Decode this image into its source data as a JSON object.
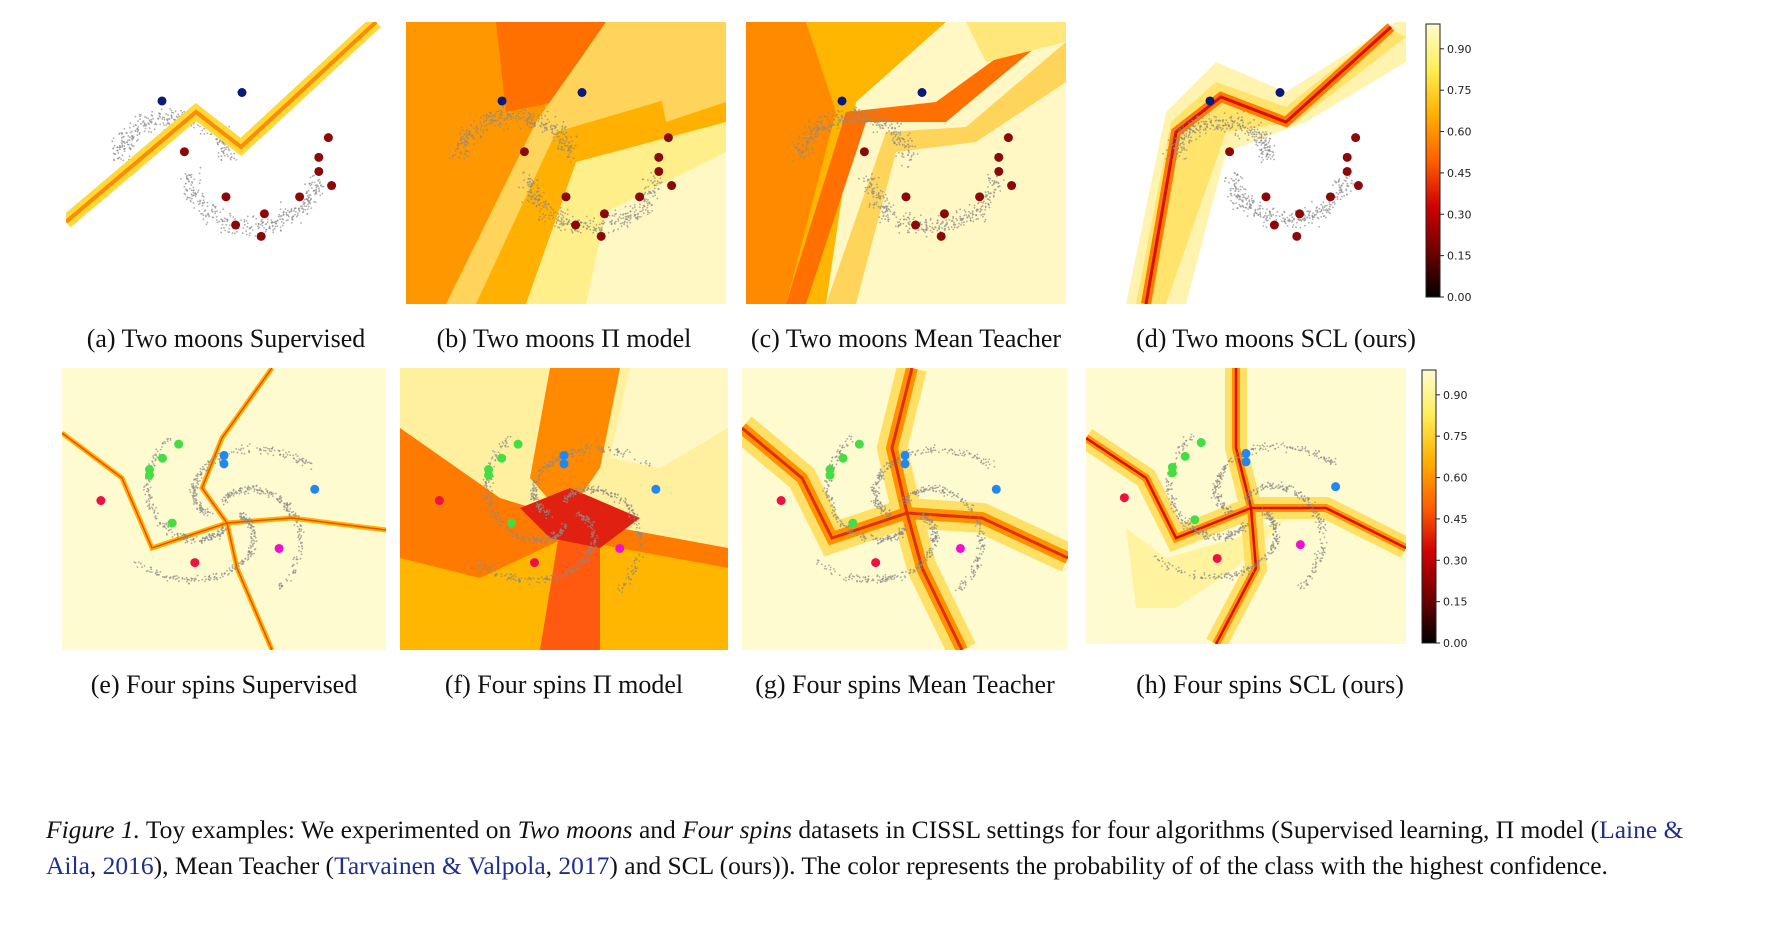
{
  "figure": {
    "panels": [
      {
        "id": "a",
        "caption": "(a) Two moons Supervised"
      },
      {
        "id": "b",
        "caption": "(b) Two moons Π model"
      },
      {
        "id": "c",
        "caption": "(c) Two moons Mean Teacher"
      },
      {
        "id": "d",
        "caption": "(d) Two moons SCL (ours)"
      },
      {
        "id": "e",
        "caption": "(e) Four spins Supervised"
      },
      {
        "id": "f",
        "caption": "(f) Four spins Π model"
      },
      {
        "id": "g",
        "caption": "(g) Four spins Mean Teacher"
      },
      {
        "id": "h",
        "caption": "(h) Four spins SCL (ours)"
      }
    ],
    "colorbar": {
      "ticks": [
        "0.90",
        "0.75",
        "0.60",
        "0.45",
        "0.30",
        "0.15",
        "0.00"
      ],
      "colors": [
        "#fffbd0",
        "#ffee55",
        "#ffb000",
        "#ff6000",
        "#d00000",
        "#700000",
        "#000000"
      ]
    },
    "caption": {
      "label": "Figure 1.",
      "t1": " Toy examples: We experimented on ",
      "em1": "Two moons",
      "t2": " and ",
      "em2": "Four spins",
      "t3": " datasets in CISSL settings for four algorithms (Supervised learning, Π model (",
      "cite1a": "Laine & Aila",
      "t4": ", ",
      "cite1b": "2016",
      "t5": "), Mean Teacher (",
      "cite2a": "Tarvainen & Valpola",
      "t6": ", ",
      "cite2b": "2017",
      "t7": ") and SCL (ours)). The color represents the probability of of the class with the highest confidence."
    }
  }
}
